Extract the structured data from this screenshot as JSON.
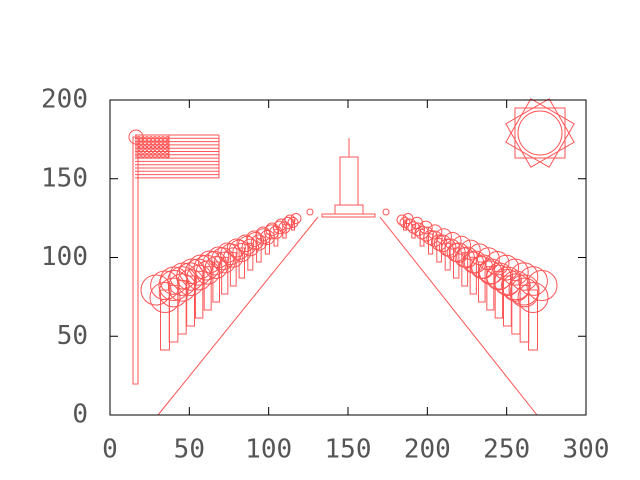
{
  "chart_data": {
    "type": "plot",
    "xlim": [
      0,
      300
    ],
    "ylim": [
      0,
      200
    ],
    "xticks": [
      0,
      50,
      100,
      150,
      200,
      250,
      300
    ],
    "yticks": [
      0,
      50,
      100,
      150,
      200
    ]
  }
}
